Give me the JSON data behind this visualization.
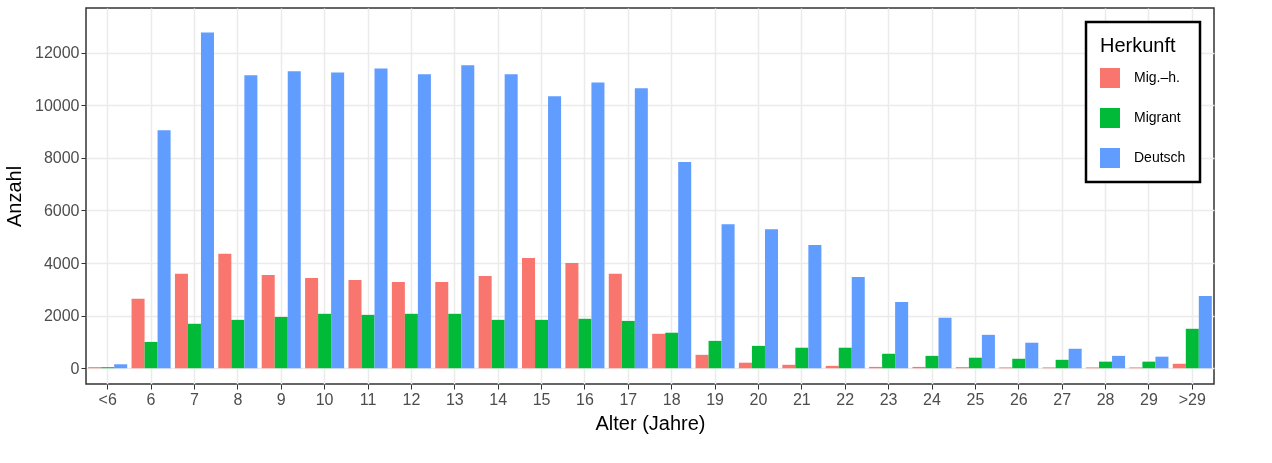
{
  "chart_data": {
    "type": "bar",
    "xlabel": "Alter (Jahre)",
    "ylabel": "Anzahl",
    "legend_title": "Herkunft",
    "categories": [
      "<6",
      "6",
      "7",
      "8",
      "9",
      "10",
      "11",
      "12",
      "13",
      "14",
      "15",
      "16",
      "17",
      "18",
      "19",
      "20",
      "21",
      "22",
      "23",
      "24",
      "25",
      "26",
      "27",
      "28",
      "29",
      ">29"
    ],
    "series": [
      {
        "name": "Mig.–h.",
        "color": "#f8766d",
        "values": [
          40,
          2640,
          3590,
          4350,
          3550,
          3430,
          3360,
          3280,
          3280,
          3510,
          4190,
          4000,
          3590,
          1310,
          510,
          210,
          130,
          90,
          50,
          50,
          40,
          30,
          30,
          30,
          30,
          170
        ]
      },
      {
        "name": "Migrant",
        "color": "#00ba38",
        "values": [
          40,
          1000,
          1690,
          1840,
          1950,
          2070,
          2030,
          2070,
          2070,
          1840,
          1840,
          1880,
          1800,
          1350,
          1040,
          850,
          780,
          780,
          550,
          470,
          400,
          360,
          320,
          250,
          250,
          1500
        ]
      },
      {
        "name": "Deutsch",
        "color": "#619cff",
        "values": [
          150,
          9050,
          12770,
          11140,
          11290,
          11250,
          11400,
          11180,
          11520,
          11180,
          10340,
          10870,
          10650,
          7840,
          5480,
          5290,
          4690,
          3470,
          2520,
          1920,
          1270,
          970,
          740,
          470,
          440,
          2750
        ]
      }
    ],
    "ylim": [
      -600,
      13700
    ],
    "yticks": [
      0,
      2000,
      4000,
      6000,
      8000,
      10000,
      12000
    ],
    "grid": true,
    "legend": "top right"
  }
}
